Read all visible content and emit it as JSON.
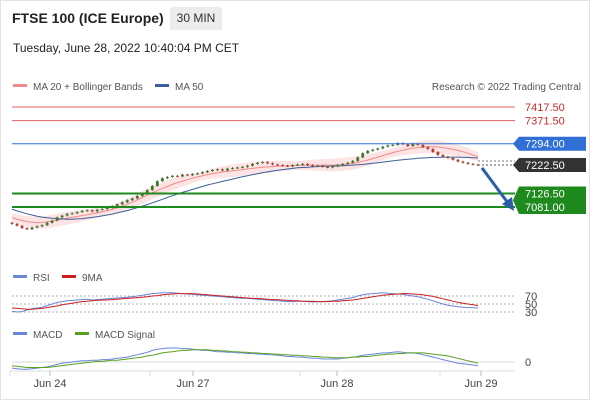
{
  "header": {
    "title": "FTSE 100 (ICE Europe)",
    "interval": "30 MIN",
    "datetime": "Tuesday, June 28, 2022 10:40:04 PM CET"
  },
  "legend": {
    "ma20": "MA 20 + Bollinger Bands",
    "ma50": "MA 50",
    "credit": "Research © 2022 Trading Central",
    "rsi": "RSI",
    "rsi_ma": "9MA",
    "macd": "MACD",
    "macd_signal": "MACD Signal"
  },
  "colors": {
    "candle_up": "#3b7a2a",
    "candle_down": "#c0392b",
    "bollinger_fill": "#fde4e4",
    "ma20": "#f08a8a",
    "ma50": "#3b5f9a",
    "resistance": "#e06060",
    "pivot": "#2f6fd6",
    "support": "#1e8a1e",
    "last_price": "#333333",
    "rsi": "#6a86d8",
    "rsi_ma": "#cc1f1f",
    "macd": "#6a86d8",
    "macd_signal": "#5aa020",
    "arrow": "#2b5ea8"
  },
  "chart_data": [
    {
      "type": "candlestick",
      "x_ticks": [
        "Jun 24",
        "Jun 27",
        "Jun 28",
        "Jun 29"
      ],
      "levels": [
        {
          "label": "7417.50",
          "value": 7417.5,
          "kind": "resistance"
        },
        {
          "label": "7371.50",
          "value": 7371.5,
          "kind": "resistance"
        },
        {
          "label": "7294.00",
          "value": 7294.0,
          "kind": "pivot"
        },
        {
          "label": "7222.50",
          "value": 7222.5,
          "kind": "last"
        },
        {
          "label": "7126.50",
          "value": 7126.5,
          "kind": "support"
        },
        {
          "label": "7081.00",
          "value": 7081.0,
          "kind": "support"
        }
      ],
      "close": [
        7024,
        7018,
        7010,
        7006,
        7012,
        7016,
        7020,
        7028,
        7035,
        7046,
        7052,
        7058,
        7060,
        7064,
        7068,
        7070,
        7066,
        7072,
        7074,
        7078,
        7084,
        7090,
        7097,
        7104,
        7110,
        7118,
        7126,
        7138,
        7152,
        7168,
        7178,
        7182,
        7186,
        7184,
        7190,
        7188,
        7192,
        7194,
        7198,
        7202,
        7206,
        7208,
        7204,
        7210,
        7212,
        7214,
        7216,
        7220,
        7226,
        7230,
        7232,
        7228,
        7224,
        7222,
        7220,
        7218,
        7222,
        7224,
        7226,
        7222,
        7218,
        7220,
        7216,
        7214,
        7218,
        7222,
        7226,
        7230,
        7236,
        7248,
        7262,
        7270,
        7274,
        7278,
        7284,
        7288,
        7290,
        7296,
        7292,
        7286,
        7294,
        7290,
        7282,
        7276,
        7266,
        7256,
        7250,
        7246,
        7240,
        7234,
        7230,
        7226,
        7224,
        7222.5
      ],
      "ma20": [
        7045,
        7040,
        7036,
        7032,
        7030,
        7028,
        7029,
        7031,
        7034,
        7037,
        7040,
        7043,
        7046,
        7049,
        7052,
        7055,
        7058,
        7061,
        7065,
        7069,
        7073,
        7078,
        7084,
        7090,
        7097,
        7105,
        7113,
        7121,
        7129,
        7136,
        7143,
        7150,
        7157,
        7163,
        7168,
        7173,
        7178,
        7182,
        7186,
        7190,
        7193,
        7196,
        7199,
        7201,
        7203,
        7205,
        7207,
        7209,
        7211,
        7213,
        7215,
        7216,
        7217,
        7218,
        7219,
        7220,
        7220,
        7221,
        7221,
        7222,
        7222,
        7222,
        7222,
        7222,
        7222,
        7223,
        7224,
        7226,
        7228,
        7231,
        7235,
        7239,
        7244,
        7249,
        7254,
        7259,
        7264,
        7268,
        7272,
        7276,
        7279,
        7281,
        7283,
        7284,
        7284,
        7283,
        7281,
        7278,
        7275,
        7271,
        7267,
        7262,
        7256,
        7250
      ],
      "ma50": [
        7074,
        7068,
        7063,
        7058,
        7054,
        7050,
        7047,
        7045,
        7043,
        7042,
        7041,
        7040,
        7040,
        7041,
        7042,
        7044,
        7046,
        7048,
        7051,
        7054,
        7057,
        7061,
        7065,
        7069,
        7074,
        7079,
        7084,
        7089,
        7095,
        7101,
        7107,
        7113,
        7119,
        7124,
        7130,
        7135,
        7140,
        7145,
        7150,
        7155,
        7159,
        7163,
        7167,
        7171,
        7175,
        7179,
        7183,
        7186,
        7190,
        7193,
        7196,
        7199,
        7202,
        7205,
        7207,
        7209,
        7211,
        7213,
        7214,
        7215,
        7216,
        7217,
        7218,
        7218,
        7219,
        7219,
        7220,
        7221,
        7222,
        7223,
        7224,
        7226,
        7228,
        7230,
        7232,
        7234,
        7236,
        7238,
        7240,
        7242,
        7243,
        7245,
        7246,
        7247,
        7248,
        7248,
        7249,
        7249,
        7249,
        7249,
        7248,
        7248,
        7247,
        7246
      ]
    },
    {
      "type": "line",
      "name_label": "RSI",
      "y_ticks": [
        70,
        50,
        30
      ],
      "rsi": [
        32,
        30,
        31,
        35,
        38,
        40,
        42,
        46,
        50,
        54,
        56,
        58,
        59,
        60,
        61,
        62,
        60,
        61,
        62,
        63,
        64,
        65,
        66,
        67,
        68,
        70,
        72,
        74,
        76,
        77,
        78,
        78,
        78,
        77,
        76,
        75,
        74,
        73,
        72,
        71,
        70,
        69,
        68,
        67,
        66,
        65,
        64,
        64,
        63,
        62,
        61,
        60,
        59,
        58,
        57,
        56,
        56,
        57,
        57,
        56,
        55,
        56,
        56,
        57,
        58,
        60,
        62,
        64,
        66,
        70,
        73,
        75,
        76,
        77,
        78,
        77,
        76,
        75,
        74,
        72,
        70,
        68,
        65,
        62,
        58,
        54,
        50,
        47,
        45,
        43,
        42,
        41,
        41,
        40
      ],
      "ma9": [
        40,
        39,
        38,
        37,
        37,
        38,
        39,
        41,
        43,
        45,
        48,
        50,
        52,
        54,
        56,
        57,
        58,
        59,
        60,
        60,
        61,
        62,
        63,
        64,
        65,
        66,
        67,
        68,
        70,
        71,
        73,
        74,
        75,
        76,
        76,
        76,
        76,
        75,
        74,
        73,
        72,
        71,
        70,
        69,
        68,
        67,
        66,
        65,
        64,
        64,
        63,
        62,
        61,
        61,
        60,
        59,
        58,
        58,
        57,
        57,
        57,
        56,
        56,
        56,
        57,
        57,
        58,
        59,
        60,
        62,
        64,
        66,
        68,
        70,
        72,
        73,
        74,
        75,
        76,
        76,
        75,
        74,
        73,
        71,
        69,
        66,
        63,
        60,
        57,
        54,
        52,
        50,
        48,
        46
      ]
    },
    {
      "type": "line",
      "y_ticks": [
        0
      ],
      "macd": [
        -10,
        -11,
        -12,
        -12,
        -11,
        -10,
        -9,
        -8,
        -6,
        -4,
        -2,
        -1,
        0,
        1,
        2,
        2,
        3,
        3,
        4,
        4,
        5,
        6,
        7,
        8,
        10,
        12,
        14,
        16,
        19,
        21,
        22,
        23,
        23,
        23,
        22,
        22,
        21,
        20,
        19,
        19,
        18,
        17,
        17,
        16,
        16,
        15,
        15,
        14,
        14,
        13,
        13,
        12,
        12,
        11,
        10,
        9,
        9,
        8,
        8,
        7,
        6,
        6,
        5,
        5,
        5,
        5,
        6,
        7,
        8,
        9,
        11,
        12,
        13,
        14,
        15,
        15,
        16,
        17,
        16,
        15,
        15,
        14,
        12,
        10,
        8,
        6,
        4,
        2,
        0,
        -2,
        -3,
        -4,
        -5,
        -6
      ],
      "signal": [
        -6,
        -7,
        -8,
        -9,
        -9,
        -9,
        -9,
        -9,
        -8,
        -7,
        -6,
        -5,
        -4,
        -3,
        -2,
        -1,
        0,
        1,
        1,
        2,
        3,
        3,
        4,
        5,
        6,
        7,
        8,
        10,
        11,
        13,
        15,
        16,
        17,
        18,
        19,
        19,
        20,
        20,
        20,
        20,
        19,
        19,
        18,
        18,
        17,
        17,
        16,
        16,
        15,
        15,
        14,
        14,
        13,
        13,
        12,
        12,
        11,
        11,
        10,
        10,
        9,
        9,
        8,
        8,
        7,
        7,
        7,
        7,
        8,
        8,
        9,
        9,
        10,
        11,
        12,
        13,
        13,
        14,
        14,
        15,
        15,
        15,
        15,
        14,
        13,
        12,
        11,
        10,
        8,
        6,
        4,
        2,
        0,
        -2
      ]
    }
  ]
}
